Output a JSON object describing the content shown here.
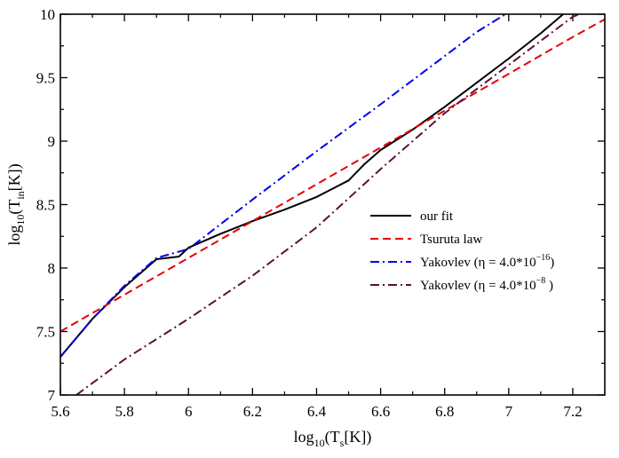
{
  "chart_data": {
    "type": "line",
    "title": "",
    "xlabel": {
      "prefix": "log",
      "prefix_sub": "10",
      "open": "(T",
      "var_sub": "s",
      "close": "[K])"
    },
    "ylabel": {
      "prefix": "log",
      "prefix_sub": "10",
      "open": "(T",
      "var_sub": "in",
      "close": "[K])"
    },
    "xlim": [
      5.6,
      7.3
    ],
    "ylim": [
      7.0,
      10.0
    ],
    "xticks": [
      "5.6",
      "5.8",
      "6",
      "6.2",
      "6.4",
      "6.6",
      "6.8",
      "7",
      "7.2"
    ],
    "yticks": [
      "7",
      "7.5",
      "8",
      "8.5",
      "9",
      "9.5",
      "10"
    ],
    "grid": false,
    "legend_position": "center-right",
    "series": [
      {
        "name": "our fit",
        "legend": {
          "text": "our fit",
          "sup": "",
          "close": ""
        },
        "color": "#000000",
        "dash": "solid",
        "x": [
          5.6,
          5.7,
          5.8,
          5.9,
          5.97,
          6.0,
          6.1,
          6.2,
          6.3,
          6.4,
          6.5,
          6.55,
          6.6,
          6.7,
          6.8,
          6.9,
          7.0,
          7.1,
          7.17
        ],
        "y": [
          7.3,
          7.6,
          7.85,
          8.07,
          8.09,
          8.16,
          8.27,
          8.37,
          8.46,
          8.56,
          8.69,
          8.82,
          8.93,
          9.09,
          9.27,
          9.46,
          9.65,
          9.85,
          10.0
        ]
      },
      {
        "name": "Tsuruta law",
        "legend": {
          "text": "Tsuruta law",
          "sup": "",
          "close": ""
        },
        "color": "#e60000",
        "dash": "dashed",
        "x": [
          5.6,
          5.8,
          6.0,
          6.2,
          6.4,
          6.6,
          6.8,
          7.0,
          7.2,
          7.3
        ],
        "y": [
          7.5,
          7.79,
          8.08,
          8.37,
          8.66,
          8.95,
          9.24,
          9.53,
          9.82,
          9.96
        ]
      },
      {
        "name": "Yakovlev (η = 4.0*10^-16)",
        "legend": {
          "text": "Yakovlev (η = 4.0*10",
          "sup": "−16",
          "close": ")"
        },
        "color": "#0000e6",
        "dash": "dash-dot",
        "x": [
          5.6,
          5.7,
          5.8,
          5.9,
          6.0,
          6.2,
          6.4,
          6.6,
          6.8,
          6.9,
          6.99
        ],
        "y": [
          7.3,
          7.6,
          7.86,
          8.08,
          8.15,
          8.54,
          8.92,
          9.29,
          9.67,
          9.86,
          10.0
        ]
      },
      {
        "name": "Yakovlev (η = 4.0*10^-8)",
        "legend": {
          "text": "Yakovlev (η = 4.0*10",
          "sup": "−8",
          "close": " )"
        },
        "color": "#5c0f3d",
        "dash": "dash-dot",
        "x": [
          5.65,
          5.8,
          6.0,
          6.2,
          6.4,
          6.6,
          6.8,
          7.0,
          7.2,
          7.22
        ],
        "y": [
          7.0,
          7.28,
          7.6,
          7.94,
          8.32,
          8.78,
          9.22,
          9.6,
          9.98,
          10.0
        ]
      }
    ]
  }
}
